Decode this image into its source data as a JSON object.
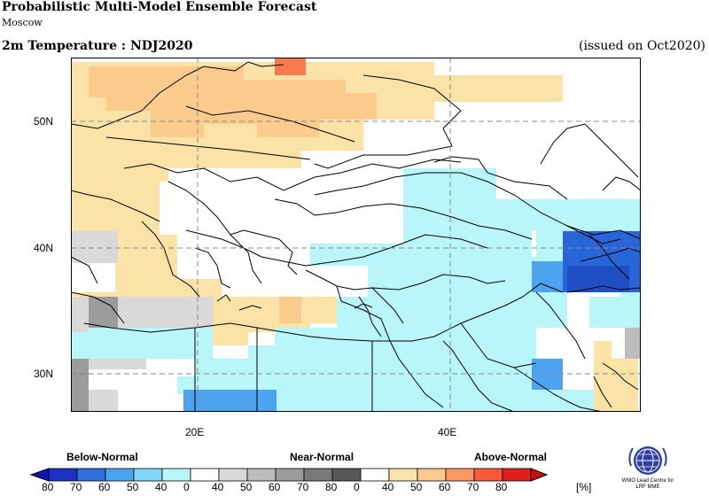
{
  "header": {
    "title": "Probabilistic Multi-Model Ensemble Forecast",
    "center": "Moscow",
    "variable": "2m Temperature : NDJ2020",
    "issued": "(issued on Oct2020)"
  },
  "map": {
    "lat_labels": [
      "50N",
      "40N",
      "30N"
    ],
    "lon_labels": [
      "20E",
      "40E"
    ],
    "lon_range": [
      10,
      55
    ],
    "lat_range": [
      27,
      55
    ],
    "colors": {
      "above_40_50": "#fbe3a7",
      "above_50_60": "#fbcb8e",
      "above_60_70": "#fa7a4f",
      "below_40_50": "#b9f6fa",
      "below_50_60": "#7fd6fa",
      "below_60_70": "#4ea3ef",
      "below_70_80": "#2865d8",
      "near_40_50": "#d9d9d9",
      "near_50_60": "#bdbdbd",
      "near_60_70": "#9b9b9b",
      "near_70_80": "#787878"
    }
  },
  "legend": {
    "below_label": "Below-Normal",
    "near_label": "Near-Normal",
    "above_label": "Above-Normal",
    "tick_labels": [
      "80",
      "70",
      "60",
      "50",
      "40",
      "0",
      "40",
      "50",
      "60",
      "70",
      "80",
      "0",
      "40",
      "50",
      "60",
      "70",
      "80"
    ],
    "unit": "[%]",
    "colors": [
      "#1a32c8",
      "#2f6fe0",
      "#4ea3ef",
      "#7fd6fa",
      "#b9f6fa",
      "#ffffff",
      "#d9d9d9",
      "#bdbdbd",
      "#9b9b9b",
      "#787878",
      "#585858",
      "#ffffff",
      "#fbe3a7",
      "#fbcb8e",
      "#fa9a62",
      "#fa5a3a",
      "#e0201a"
    ]
  },
  "logo": {
    "caption_line1": "WMO Lead Centre for",
    "caption_line2": "LRF MME"
  }
}
